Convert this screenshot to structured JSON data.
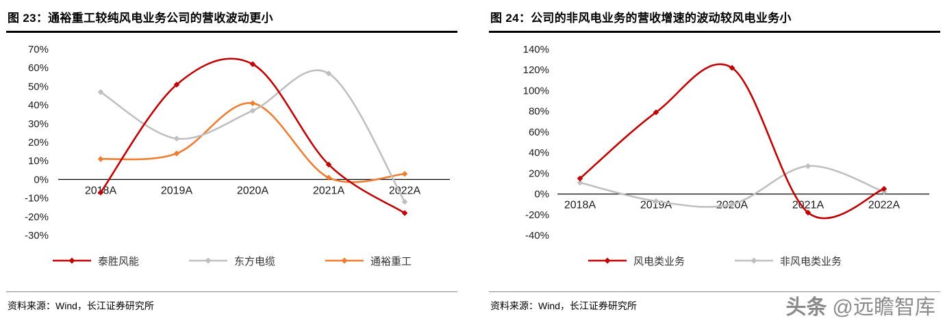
{
  "panels": [
    {
      "title": "图 23：通裕重工较纯风电业务公司的营收波动更小",
      "source": "资料来源：Wind，长江证券研究所"
    },
    {
      "title": "图 24：公司的非风电业务的营收增速的波动较风电业务小",
      "source": "资料来源：Wind，长江证券研究所"
    }
  ],
  "watermark": {
    "logo": "头条",
    "handle": "@远瞻智库"
  },
  "chart_data": [
    {
      "type": "line",
      "title": "图 23：通裕重工较纯风电业务公司的营收波动更小",
      "categories": [
        "2018A",
        "2019A",
        "2020A",
        "2021A",
        "2022A"
      ],
      "series": [
        {
          "name": "泰胜风能",
          "color": "#c00000",
          "values": [
            -7,
            51,
            62,
            8,
            -18
          ]
        },
        {
          "name": "东方电缆",
          "color": "#bfbfbf",
          "values": [
            47,
            22,
            37,
            57,
            -12
          ]
        },
        {
          "name": "通裕重工",
          "color": "#ed7d31",
          "values": [
            11,
            14,
            41,
            1,
            3
          ]
        }
      ],
      "ylim": [
        -30,
        70
      ],
      "ytick_step": 10,
      "ytick_suffix": "%",
      "xlabel": "",
      "ylabel": "",
      "grid": false,
      "legend_position": "bottom",
      "curve": "smooth",
      "marker": "diamond"
    },
    {
      "type": "line",
      "title": "图 24：公司的非风电业务的营收增速的波动较风电业务小",
      "categories": [
        "2018A",
        "2019A",
        "2020A",
        "2021A",
        "2022A"
      ],
      "series": [
        {
          "name": "风电类业务",
          "color": "#c00000",
          "values": [
            15,
            79,
            122,
            -18,
            5
          ]
        },
        {
          "name": "非风电类业务",
          "color": "#bfbfbf",
          "values": [
            11,
            -7,
            -10,
            27,
            2
          ]
        }
      ],
      "ylim": [
        -40,
        140
      ],
      "ytick_step": 20,
      "ytick_suffix": "%",
      "xlabel": "",
      "ylabel": "",
      "grid": false,
      "legend_position": "bottom",
      "curve": "smooth",
      "marker": "diamond"
    }
  ]
}
